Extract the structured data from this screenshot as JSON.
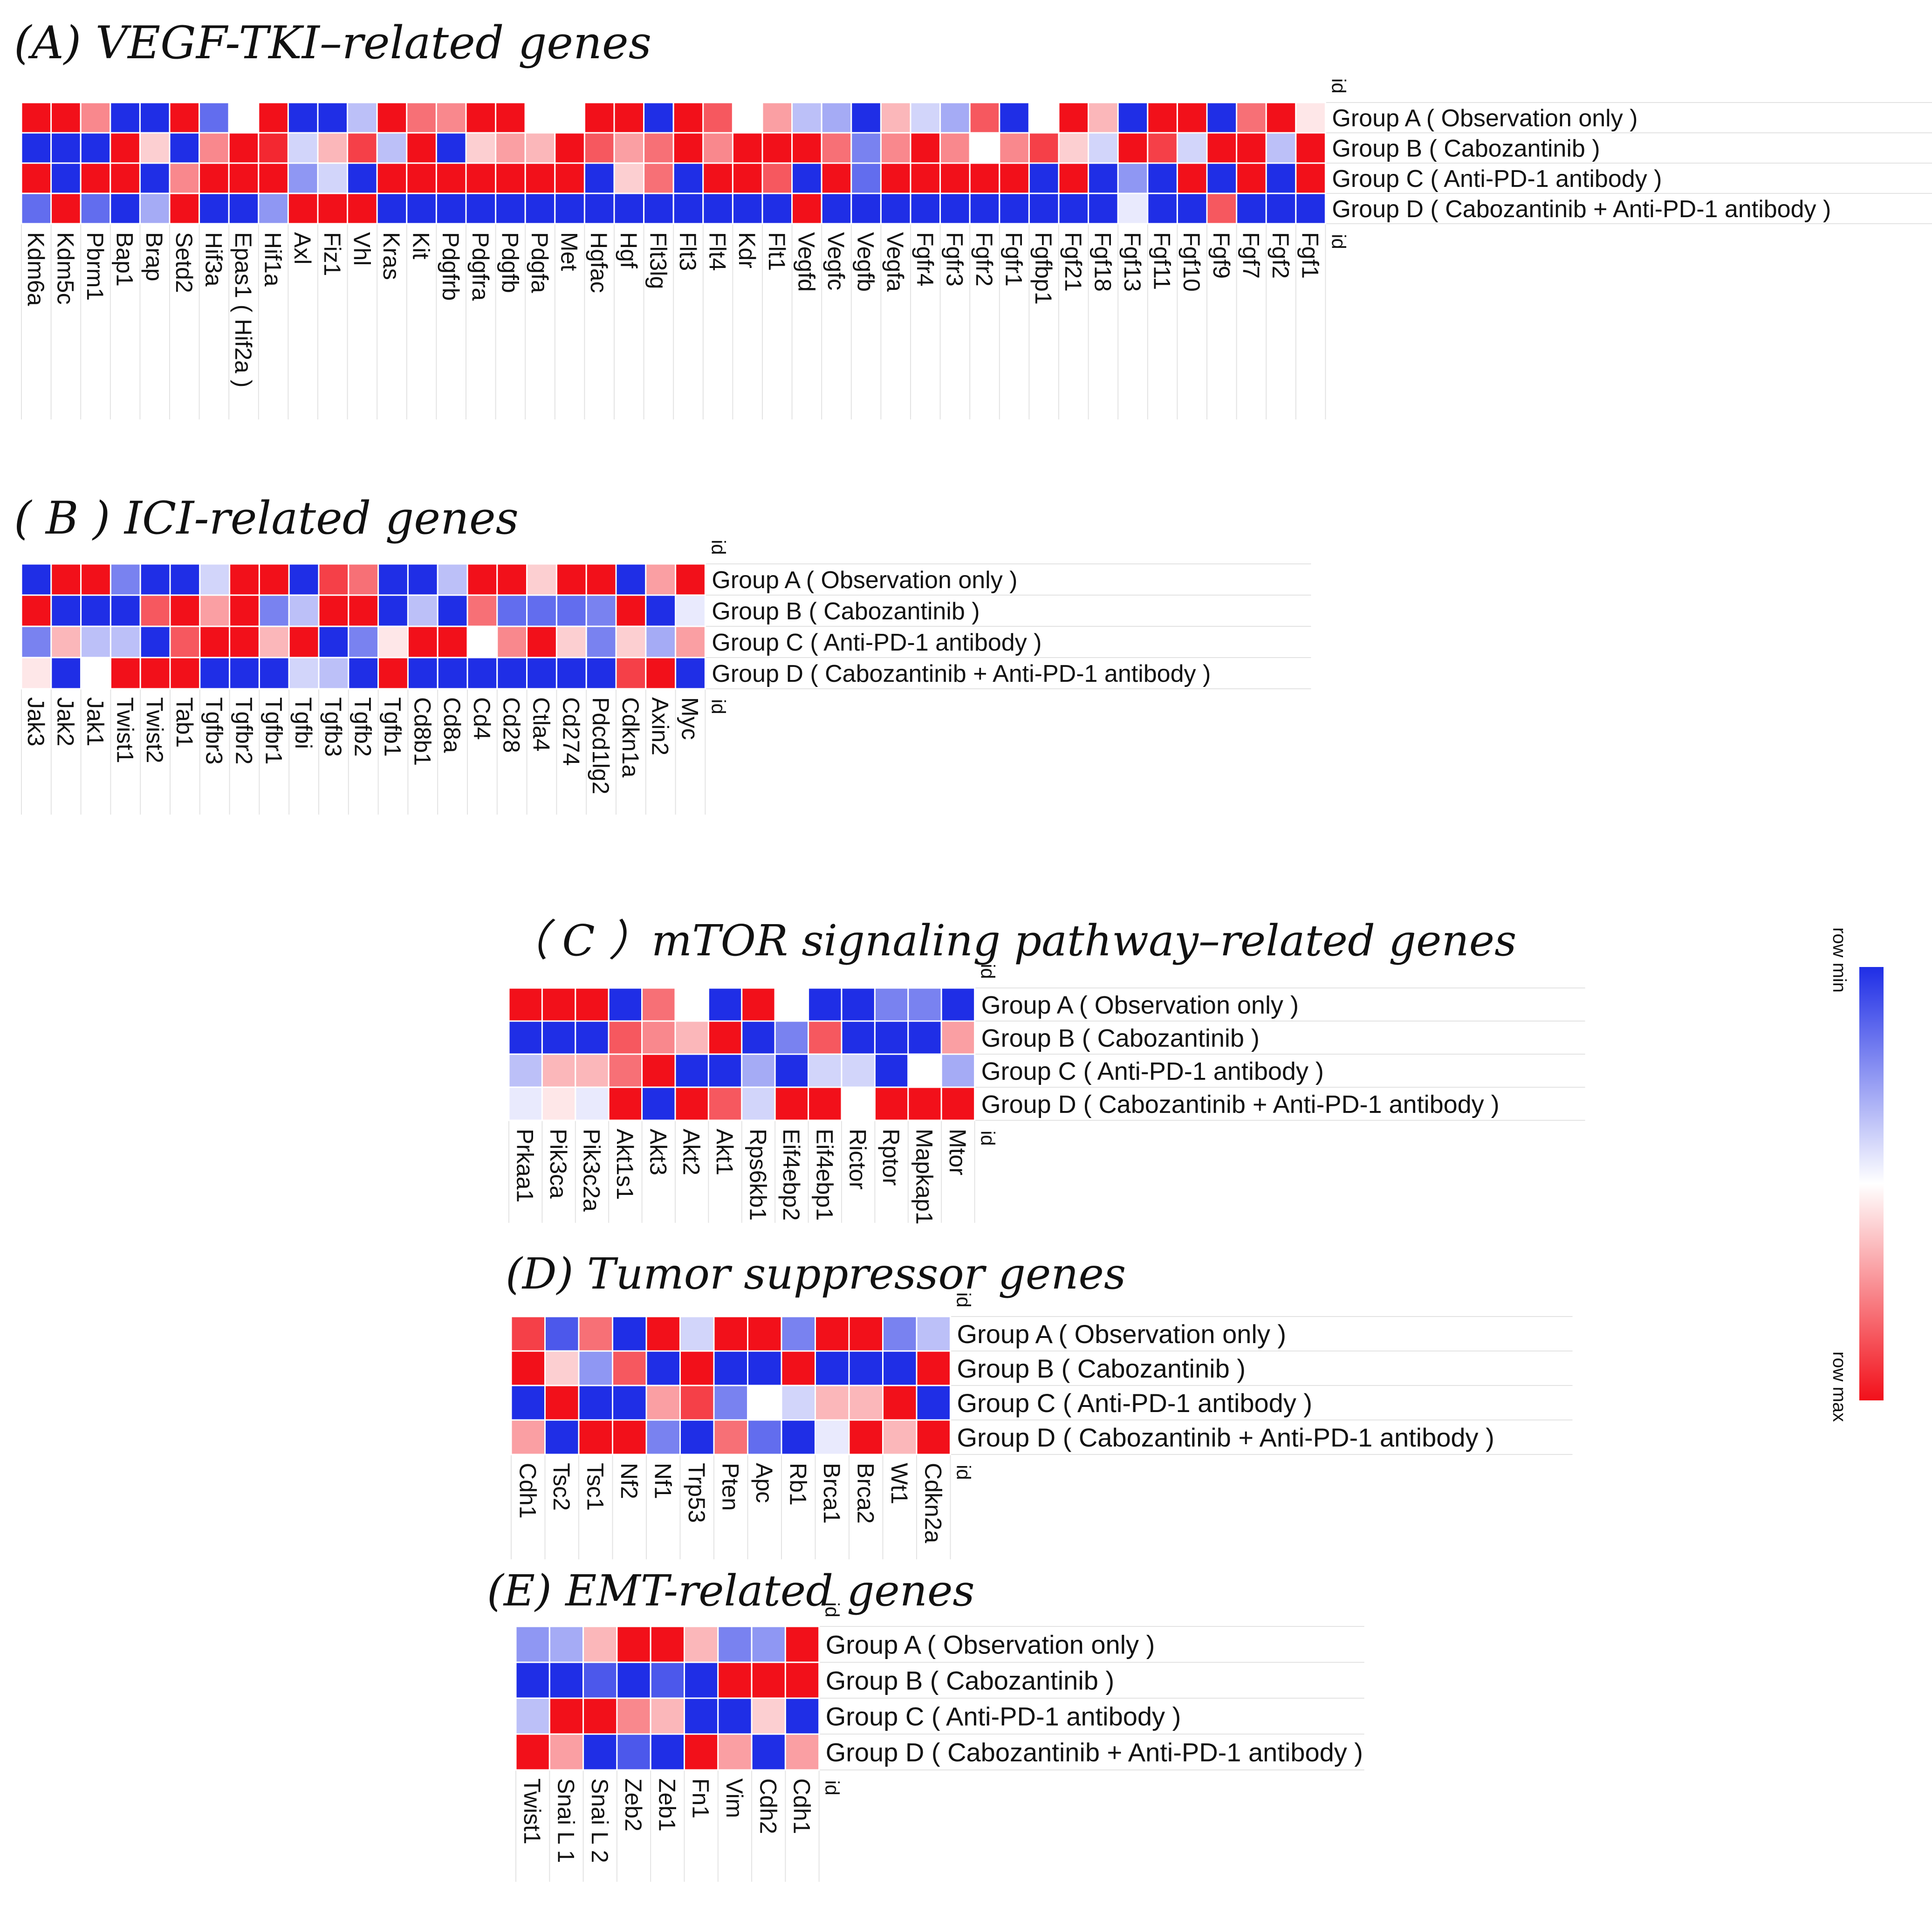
{
  "colors": {
    "row_min": "#1f2ee6",
    "mid": "#ffffff",
    "row_max": "#f2101a",
    "grid_line": "#e3e3e3",
    "cell_border": "#ffffff"
  },
  "legend": {
    "min_label": "row min",
    "max_label": "row max"
  },
  "chart_data": [
    {
      "type": "heatmap",
      "title": "(A) VEGF-TKI–related genes",
      "id_label": "id",
      "rows": [
        "Group A ( Observation only )",
        "Group B ( Cabozantinib )",
        "Group C ( Anti-PD-1 antibody )",
        "Group D ( Cabozantinib + Anti-PD-1 antibody )"
      ],
      "columns": [
        "Kdm6a",
        "Kdm5c",
        "Pbrm1",
        "Bap1",
        "Brap",
        "Setd2",
        "Hif3a",
        "Epas1 ( Hif2a )",
        "Hif1a",
        "Axl",
        "Fiz1",
        "Vhl",
        "Kras",
        "Kit",
        "Pdgfrb",
        "Pdgfra",
        "Pdgfb",
        "Pdgfa",
        "Met",
        "Hgfac",
        "Hgf",
        "Flt3lg",
        "Flt3",
        "Flt4",
        "Kdr",
        "Flt1",
        "Vegfd",
        "Vegfc",
        "Vegfb",
        "Vegfa",
        "Fgfr4",
        "Fgfr3",
        "Fgfr2",
        "Fgfr1",
        "Fgfbp1",
        "Fgf21",
        "Fgf18",
        "Fgf13",
        "Fgf11",
        "Fgf10",
        "Fgf9",
        "Fgf7",
        "Fgf2",
        "Fgf1"
      ],
      "values": [
        [
          1,
          1,
          0.5,
          -1,
          -1,
          1,
          -0.7,
          0,
          1,
          -1,
          -1,
          -0.3,
          1,
          0.6,
          0.5,
          1,
          1,
          0,
          0,
          1,
          1,
          -1,
          1,
          0.7,
          0,
          0.4,
          -0.3,
          -0.4,
          -1,
          0.3,
          -0.2,
          -0.4,
          0.7,
          -1,
          0,
          1,
          0.3,
          -1,
          1,
          1,
          -1,
          0.6,
          1,
          0.1
        ],
        [
          -1,
          -1,
          -1,
          1,
          0.2,
          -1,
          0.5,
          1,
          0.9,
          -0.2,
          0.3,
          0.8,
          -0.3,
          1,
          -1,
          0.2,
          0.4,
          0.3,
          1,
          0.7,
          0.4,
          0.6,
          1,
          0.5,
          1,
          1,
          1,
          0.6,
          -0.6,
          0.5,
          1,
          0.5,
          0,
          0.5,
          0.8,
          0.2,
          -0.2,
          1,
          0.8,
          -0.2,
          1,
          1,
          -0.3,
          1
        ],
        [
          1,
          -1,
          1,
          1,
          -1,
          0.5,
          1,
          1,
          1,
          -0.5,
          -0.2,
          -1,
          1,
          1,
          1,
          1,
          1,
          1,
          1,
          -1,
          0.2,
          0.6,
          -1,
          1,
          1,
          0.7,
          -1,
          1,
          -0.7,
          1,
          1,
          1,
          1,
          1,
          -1,
          1,
          -1,
          -0.5,
          -1,
          1,
          -1,
          1,
          -1,
          1
        ],
        [
          -0.7,
          1,
          -0.7,
          -1,
          -0.4,
          1,
          -1,
          -1,
          -0.5,
          1,
          1,
          1,
          -1,
          -1,
          -1,
          -1,
          -1,
          -1,
          -1,
          -1,
          -1,
          -1,
          -1,
          -1,
          -1,
          -1,
          1,
          -1,
          -1,
          -1,
          -1,
          -1,
          -1,
          -1,
          -1,
          -1,
          -1,
          -0.1,
          -1,
          -1,
          0.7,
          -1,
          -1,
          -1
        ]
      ]
    },
    {
      "type": "heatmap",
      "title": "( B ) ICI-related genes",
      "id_label": "id",
      "rows": [
        "Group A ( Observation only )",
        "Group B ( Cabozantinib )",
        "Group C ( Anti-PD-1 antibody )",
        "Group D ( Cabozantinib + Anti-PD-1 antibody )"
      ],
      "columns": [
        "Jak3",
        "Jak2",
        "Jak1",
        "Twist1",
        "Twist2",
        "Tab1",
        "Tgfbr3",
        "Tgfbr2",
        "Tgfbr1",
        "Tgfbi",
        "Tgfb3",
        "Tgfb2",
        "Tgfb1",
        "Cd8b1",
        "Cd8a",
        "Cd4",
        "Cd28",
        "Ctla4",
        "Cd274",
        "Pdcd1lg2",
        "Cdkn1a",
        "Axin2",
        "Myc"
      ],
      "values": [
        [
          -1,
          1,
          1,
          -0.6,
          -1,
          -1,
          -0.2,
          1,
          1,
          -1,
          0.8,
          0.6,
          -1,
          -1,
          -0.3,
          1,
          1,
          0.2,
          1,
          1,
          -1,
          0.4,
          1
        ],
        [
          1,
          -1,
          -1,
          -1,
          0.7,
          1,
          0.4,
          1,
          -0.6,
          -0.3,
          1,
          1,
          -1,
          -0.3,
          -1,
          0.6,
          -0.7,
          -0.7,
          -0.7,
          -0.6,
          1,
          -1,
          -0.1
        ],
        [
          -0.6,
          0.3,
          -0.3,
          -0.3,
          -1,
          0.7,
          1,
          1,
          0.3,
          1,
          -1,
          -0.6,
          0.1,
          1,
          1,
          0,
          0.5,
          1,
          0.2,
          -0.6,
          0.2,
          -0.4,
          0.4
        ],
        [
          0.1,
          -1,
          0,
          1,
          1,
          1,
          -1,
          -1,
          -1,
          -0.2,
          -0.3,
          -1,
          1,
          -1,
          -1,
          -1,
          -1,
          -1,
          -1,
          -1,
          0.8,
          1,
          -1
        ]
      ]
    },
    {
      "type": "heatmap",
      "title": "（ C ）mTOR signaling pathway–related genes",
      "id_label": "id",
      "rows": [
        "Group A ( Observation only )",
        "Group B ( Cabozantinib )",
        "Group C ( Anti-PD-1 antibody )",
        "Group D ( Cabozantinib + Anti-PD-1 antibody )"
      ],
      "columns": [
        "Prkaa1",
        "Pik3ca",
        "Pik3c2a",
        "Akt1s1",
        "Akt3",
        "Akt2",
        "Akt1",
        "Rps6kb1",
        "Eif4ebp2",
        "Eif4ebp1",
        "Rictor",
        "Rptor",
        "Mapkap1",
        "Mtor"
      ],
      "values": [
        [
          1,
          1,
          1,
          -1,
          0.6,
          0,
          -1,
          1,
          0,
          -1,
          -1,
          -0.6,
          -0.6,
          -1
        ],
        [
          -1,
          -1,
          -1,
          0.7,
          0.5,
          0.3,
          1,
          -1,
          -0.6,
          0.7,
          -1,
          -1,
          -1,
          0.4
        ],
        [
          -0.3,
          0.3,
          0.3,
          0.6,
          1,
          -1,
          -1,
          -0.4,
          -1,
          -0.2,
          -0.2,
          -1,
          0,
          -0.4
        ],
        [
          -0.1,
          0.1,
          -0.1,
          1,
          -1,
          1,
          0.7,
          -0.2,
          1,
          1,
          0,
          1,
          1,
          1
        ]
      ]
    },
    {
      "type": "heatmap",
      "title": "(D) Tumor suppressor genes",
      "id_label": "id",
      "rows": [
        "Group A ( Observation only )",
        "Group B ( Cabozantinib )",
        "Group C ( Anti-PD-1 antibody )",
        "Group D ( Cabozantinib + Anti-PD-1 antibody )"
      ],
      "columns": [
        "Cdh1",
        "Tsc2",
        "Tsc1",
        "Nf2",
        "Nf1",
        "Trp53",
        "Pten",
        "Apc",
        "Rb1",
        "Brca1",
        "Brca2",
        "Wt1",
        "Cdkn2a"
      ],
      "values": [
        [
          0.8,
          -0.8,
          0.6,
          -1,
          1,
          -0.2,
          1,
          1,
          -0.6,
          1,
          1,
          -0.6,
          -0.3
        ],
        [
          1,
          0.2,
          -0.5,
          0.7,
          -1,
          1,
          -1,
          -1,
          1,
          -1,
          -1,
          -1,
          1
        ],
        [
          -1,
          1,
          -1,
          -1,
          0.4,
          0.8,
          -0.6,
          0,
          -0.2,
          0.3,
          0.3,
          1,
          -1
        ],
        [
          0.4,
          -1,
          1,
          1,
          -0.6,
          -1,
          0.6,
          -0.7,
          -1,
          -0.1,
          1,
          0.3,
          1
        ]
      ]
    },
    {
      "type": "heatmap",
      "title": "(E) EMT-related genes",
      "id_label": "id",
      "rows": [
        "Group A ( Observation only )",
        "Group B ( Cabozantinib )",
        "Group C ( Anti-PD-1 antibody )",
        "Group D ( Cabozantinib + Anti-PD-1 antibody )"
      ],
      "columns": [
        "Twist1",
        "Snai L 1",
        "Snai L 2",
        "Zeb2",
        "Zeb1",
        "Fn1",
        "Vim",
        "Cdh2",
        "Cdh1"
      ],
      "values": [
        [
          -0.5,
          -0.4,
          0.3,
          1,
          1,
          0.3,
          -0.6,
          -0.5,
          1
        ],
        [
          -1,
          -1,
          -0.8,
          -1,
          -0.8,
          -1,
          1,
          1,
          1
        ],
        [
          -0.3,
          1,
          1,
          0.5,
          0.3,
          -1,
          -1,
          0.2,
          -1
        ],
        [
          1,
          0.4,
          -1,
          -0.8,
          -1,
          1,
          0.4,
          -1,
          0.4
        ]
      ]
    }
  ]
}
